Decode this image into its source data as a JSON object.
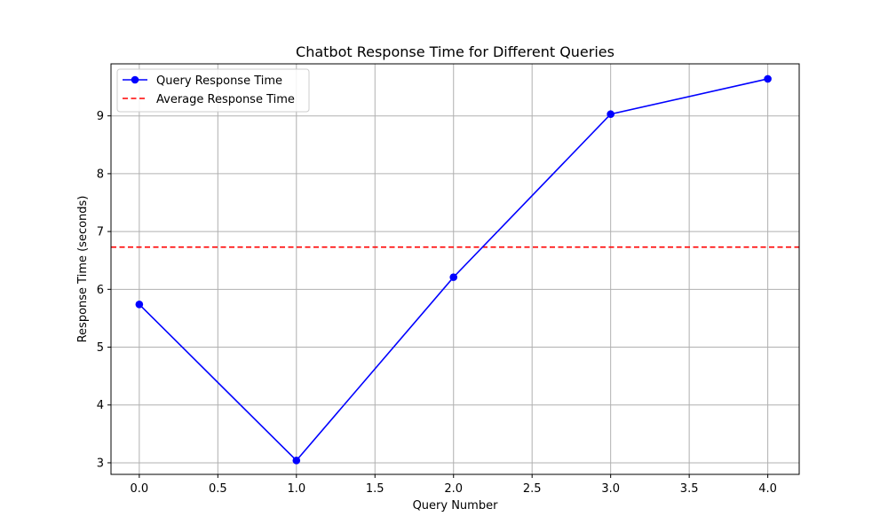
{
  "chart_data": {
    "type": "line",
    "title": "Chatbot Response Time for Different Queries",
    "xlabel": "Query Number",
    "ylabel": "Response Time (seconds)",
    "xlim": [
      -0.18,
      4.2
    ],
    "ylim": [
      2.8,
      9.9
    ],
    "grid": true,
    "legend_position": "top-left",
    "x_ticks": [
      0.0,
      0.5,
      1.0,
      1.5,
      2.0,
      2.5,
      3.0,
      3.5,
      4.0
    ],
    "x_tick_labels": [
      "0.0",
      "0.5",
      "1.0",
      "1.5",
      "2.0",
      "2.5",
      "3.0",
      "3.5",
      "4.0"
    ],
    "y_ticks": [
      3,
      4,
      5,
      6,
      7,
      8,
      9
    ],
    "y_tick_labels": [
      "3",
      "4",
      "5",
      "6",
      "7",
      "8",
      "9"
    ],
    "series": [
      {
        "name": "Query Response Time",
        "x": [
          0,
          1,
          2,
          3,
          4
        ],
        "values": [
          5.74,
          3.04,
          6.21,
          9.03,
          9.64
        ],
        "color": "#0000ff",
        "marker": "circle",
        "line_style": "solid"
      }
    ],
    "reference_lines": [
      {
        "name": "Average Response Time",
        "y": 6.73,
        "color": "#ff0000",
        "line_style": "dashed"
      }
    ]
  }
}
